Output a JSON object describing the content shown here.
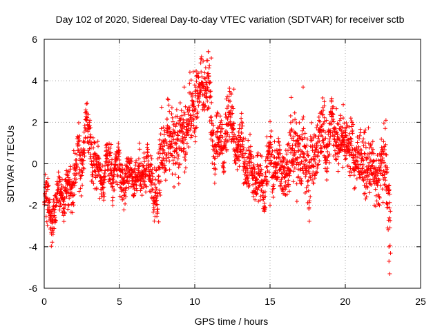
{
  "chart_data": {
    "type": "scatter",
    "title": "Day 102 of 2020, Sidereal Day-to-day VTEC variation (SDTVAR) for receiver sctb",
    "xlabel": "GPS time / hours",
    "ylabel": "SDTVAR / TECUs",
    "xlim": [
      0,
      25
    ],
    "ylim": [
      -6,
      6
    ],
    "xticks": [
      0,
      5,
      10,
      15,
      20,
      25
    ],
    "yticks": [
      -6,
      -4,
      -2,
      0,
      2,
      4,
      6
    ],
    "xtick_labels": [
      "0",
      "5",
      "10",
      "15",
      "20",
      "25"
    ],
    "ytick_labels": [
      "-6",
      "-4",
      "-2",
      "0",
      "2",
      "4",
      "6"
    ],
    "grid": true,
    "marker": "+",
    "series_color": "#ff0000",
    "trend": {
      "x": [
        0,
        0.2,
        0.4,
        0.7,
        1.0,
        1.3,
        1.6,
        1.9,
        2.2,
        2.5,
        2.8,
        3.0,
        3.3,
        3.6,
        3.9,
        4.2,
        4.5,
        4.8,
        5.1,
        5.4,
        5.7,
        6.0,
        6.3,
        6.6,
        6.9,
        7.2,
        7.5,
        7.8,
        8.0,
        8.3,
        8.6,
        8.9,
        9.2,
        9.5,
        9.8,
        10.1,
        10.4,
        10.7,
        11.0,
        11.3,
        11.6,
        11.9,
        12.2,
        12.5,
        12.8,
        13.1,
        13.4,
        13.7,
        14.0,
        14.3,
        14.6,
        14.9,
        15.2,
        15.5,
        15.8,
        16.1,
        16.4,
        16.7,
        17.0,
        17.3,
        17.6,
        17.9,
        18.2,
        18.5,
        18.8,
        19.1,
        19.4,
        19.7,
        20.0,
        20.3,
        20.6,
        20.9,
        21.2,
        21.5,
        21.8,
        22.1,
        22.4,
        22.7,
        22.9,
        23.0
      ],
      "y": [
        -2.0,
        -1.5,
        -2.3,
        -2.6,
        -1.0,
        -1.8,
        -1.3,
        -0.8,
        0.4,
        -0.1,
        2.0,
        1.0,
        0.2,
        -0.3,
        -0.8,
        0.2,
        -0.6,
        0.0,
        -0.4,
        -0.9,
        -0.3,
        -0.5,
        -0.8,
        -0.2,
        -0.6,
        -0.9,
        -1.8,
        0.8,
        0.6,
        1.0,
        1.5,
        0.5,
        2.0,
        1.5,
        2.3,
        3.2,
        3.5,
        4.2,
        3.2,
        0.8,
        1.5,
        0.5,
        2.5,
        1.8,
        0.4,
        0.9,
        0.0,
        -0.3,
        -0.6,
        -0.8,
        -1.2,
        0.7,
        -0.5,
        0.3,
        -0.6,
        -0.4,
        0.5,
        1.2,
        -0.2,
        1.0,
        -0.8,
        0.3,
        0.9,
        1.8,
        0.6,
        2.0,
        1.3,
        0.8,
        1.5,
        0.7,
        0.2,
        0.5,
        -0.3,
        0.1,
        -0.5,
        -0.8,
        -0.2,
        0.0,
        -1.8,
        -2.8
      ],
      "spread": [
        0.5,
        0.9,
        0.8,
        0.5,
        0.5,
        0.6,
        0.7,
        0.8,
        0.9,
        1.1,
        0.6,
        0.8,
        0.9,
        0.7,
        0.7,
        0.6,
        0.8,
        0.7,
        0.7,
        0.6,
        0.6,
        0.7,
        0.6,
        0.7,
        0.6,
        0.8,
        0.9,
        1.2,
        1.0,
        1.1,
        1.1,
        1.0,
        1.2,
        1.3,
        1.1,
        1.0,
        1.2,
        1.0,
        1.0,
        0.8,
        1.0,
        0.9,
        0.9,
        1.0,
        0.8,
        0.8,
        0.8,
        0.8,
        0.9,
        0.7,
        0.7,
        0.9,
        0.9,
        0.8,
        0.8,
        1.0,
        1.1,
        1.4,
        1.1,
        1.2,
        1.0,
        1.1,
        0.9,
        1.0,
        1.0,
        1.0,
        1.0,
        0.8,
        0.9,
        0.9,
        1.0,
        0.9,
        0.9,
        1.0,
        0.8,
        1.0,
        0.9,
        1.0,
        1.3,
        1.5
      ]
    },
    "notable_points": [
      {
        "x": 10.9,
        "y": 5.4
      },
      {
        "x": 11.1,
        "y": 5.1
      },
      {
        "x": 9.3,
        "y": 3.7
      },
      {
        "x": 12.6,
        "y": 3.6
      },
      {
        "x": 17.2,
        "y": 3.7
      },
      {
        "x": 2.8,
        "y": 2.5
      },
      {
        "x": 18.6,
        "y": 3.0
      },
      {
        "x": 22.7,
        "y": 2.1
      },
      {
        "x": 0.6,
        "y": -3.3
      },
      {
        "x": 7.6,
        "y": -2.8
      },
      {
        "x": 15.0,
        "y": -2.0
      },
      {
        "x": 22.9,
        "y": -4.0
      },
      {
        "x": 22.9,
        "y": -4.7
      },
      {
        "x": 22.95,
        "y": -5.3
      }
    ],
    "point_count": 2600
  }
}
